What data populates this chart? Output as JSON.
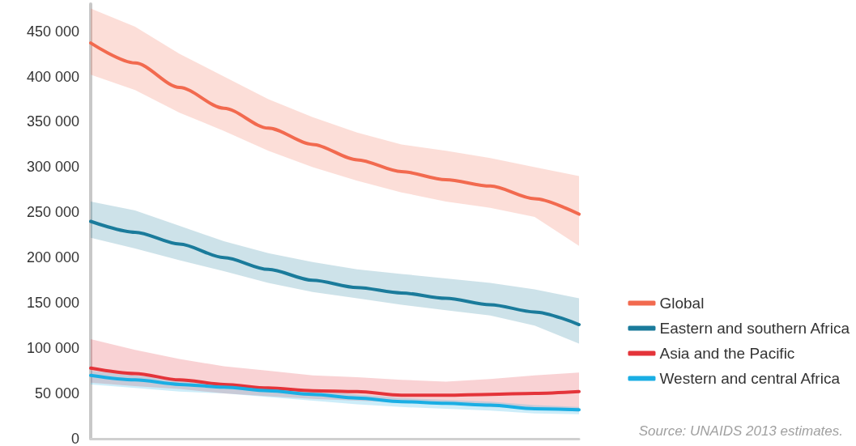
{
  "chart_data": {
    "type": "line",
    "categories": [
      null,
      null,
      null,
      null,
      null,
      null,
      null,
      null,
      null,
      null,
      null,
      null
    ],
    "series": [
      {
        "name": "Global",
        "color": "#f26a4f",
        "values": [
          437000,
          415000,
          388000,
          365000,
          343000,
          325000,
          308000,
          295000,
          286000,
          279000,
          265000,
          248000
        ],
        "upper": [
          475000,
          455000,
          425000,
          400000,
          375000,
          355000,
          338000,
          325000,
          318000,
          310000,
          300000,
          290000
        ],
        "lower": [
          402000,
          385000,
          360000,
          340000,
          318000,
          300000,
          285000,
          272000,
          262000,
          255000,
          245000,
          213000
        ]
      },
      {
        "name": "Eastern and southern Africa",
        "color": "#1a7b9b",
        "values": [
          240000,
          228000,
          215000,
          200000,
          187000,
          175000,
          167000,
          161000,
          155000,
          148000,
          140000,
          126000
        ],
        "upper": [
          262000,
          252000,
          235000,
          218000,
          205000,
          195000,
          187000,
          182000,
          177000,
          172000,
          165000,
          155000
        ],
        "lower": [
          222000,
          210000,
          197000,
          185000,
          172000,
          162000,
          155000,
          148000,
          142000,
          136000,
          125000,
          105000
        ]
      },
      {
        "name": "Asia and the Pacific",
        "color": "#e4343a",
        "values": [
          78000,
          72000,
          65000,
          60000,
          56000,
          53000,
          52000,
          48000,
          48000,
          49000,
          50000,
          52000
        ],
        "upper": [
          110000,
          98000,
          88000,
          80000,
          75000,
          70000,
          68000,
          65000,
          63000,
          66000,
          70000,
          73000
        ],
        "lower": [
          62000,
          58000,
          55000,
          50000,
          47000,
          44000,
          42000,
          40000,
          38000,
          35000,
          33000,
          30000
        ]
      },
      {
        "name": "Western and central Africa",
        "color": "#1aaee4",
        "values": [
          70000,
          65000,
          60000,
          57000,
          53000,
          49000,
          45000,
          41000,
          39000,
          37000,
          33000,
          32000
        ],
        "upper": [
          75000,
          70000,
          65000,
          61000,
          57000,
          53000,
          49000,
          45000,
          43000,
          41000,
          37000,
          35000
        ],
        "lower": [
          60000,
          56000,
          52000,
          50000,
          46000,
          42000,
          38000,
          35000,
          33000,
          31000,
          28000,
          27000
        ]
      }
    ],
    "ylim": [
      0,
      480000
    ],
    "yticks": [
      {
        "value": 0,
        "label": "0"
      },
      {
        "value": 50000,
        "label": "50 000"
      },
      {
        "value": 100000,
        "label": "100 000"
      },
      {
        "value": 150000,
        "label": "150 000"
      },
      {
        "value": 200000,
        "label": "200 000"
      },
      {
        "value": 250000,
        "label": "250 000"
      },
      {
        "value": 300000,
        "label": "300 000"
      },
      {
        "value": 350000,
        "label": "350 000"
      },
      {
        "value": 400000,
        "label": "400 000"
      },
      {
        "value": 450000,
        "label": "450 000"
      }
    ],
    "tick_labels": "y",
    "grid": false,
    "legend": "right",
    "marker": "none",
    "line_style": "solid",
    "annotations": [
      "Source: UNAIDS 2013 estimates."
    ]
  }
}
